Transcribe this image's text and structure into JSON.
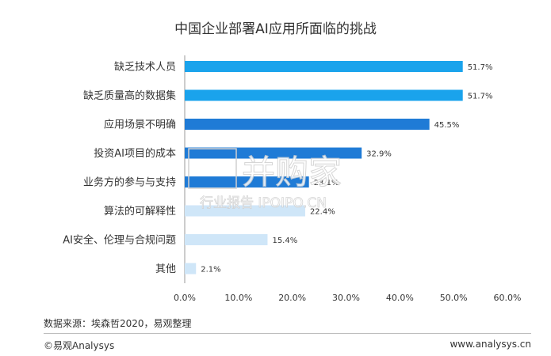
{
  "chart_data": {
    "type": "bar",
    "orientation": "horizontal",
    "title": "中国企业部署AI应用所面临的挑战",
    "categories": [
      "缺乏技术人员",
      "缺乏质量高的数据集",
      "应用场景不明确",
      "投资AI项目的成本",
      "业务方的参与与支持",
      "算法的可解释性",
      "AI安全、伦理与合规问题",
      "其他"
    ],
    "values": [
      51.7,
      51.7,
      45.5,
      32.9,
      23.1,
      22.4,
      15.4,
      2.1
    ],
    "value_labels": [
      "51.7%",
      "51.7%",
      "45.5%",
      "32.9%",
      "23.1%",
      "22.4%",
      "15.4%",
      "2.1%"
    ],
    "bar_colors": [
      "#1aa3ec",
      "#1aa3ec",
      "#1f7bd6",
      "#1f7bd6",
      "#1f7bd6",
      "#cfe6f8",
      "#cfe6f8",
      "#cfe6f8"
    ],
    "xlim": [
      0,
      60
    ],
    "x_ticks": [
      "0.0%",
      "10.0%",
      "20.0%",
      "30.0%",
      "40.0%",
      "50.0%",
      "60.0%"
    ],
    "grid": false
  },
  "watermark": {
    "brand": "并购家",
    "sub": "行业报告 IPOIPO.CN"
  },
  "footer": {
    "source": "数据来源：埃森哲2020，易观整理",
    "logo": "©易观Analysys",
    "url": "www.analysys.cn"
  }
}
